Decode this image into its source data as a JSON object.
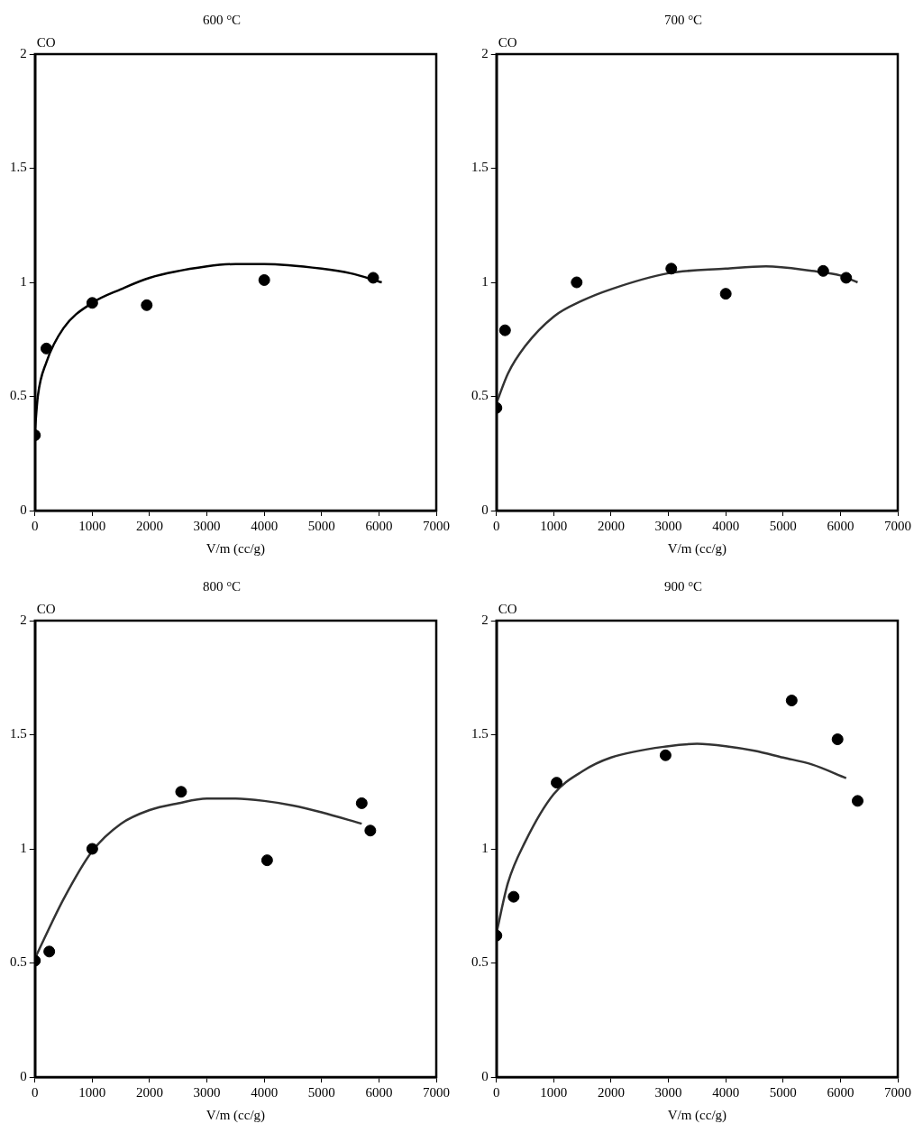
{
  "chart_data": [
    {
      "type": "scatter",
      "title": "600 °C",
      "xlabel": "V/m (cc/g)",
      "ylabel": "CO",
      "xlim": [
        0,
        7000
      ],
      "xticks": [
        0,
        1000,
        2000,
        3000,
        4000,
        5000,
        6000,
        7000
      ],
      "ylim": [
        0,
        2
      ],
      "yticks": [
        0,
        0.5,
        1,
        1.5,
        2
      ],
      "series": [
        {
          "marker": "circle",
          "color": "#000000",
          "x": [
            0,
            200,
            1000,
            1950,
            4000,
            5900
          ],
          "values": [
            0.33,
            0.71,
            0.91,
            0.9,
            1.01,
            1.02
          ]
        },
        {
          "type": "line",
          "marker": "none",
          "color": "#000000",
          "x": [
            0,
            50,
            200,
            500,
            1000,
            1500,
            2000,
            3000,
            3500,
            4000,
            5000,
            5500,
            6050
          ],
          "values": [
            0.35,
            0.5,
            0.65,
            0.8,
            0.91,
            0.97,
            1.02,
            1.07,
            1.08,
            1.08,
            1.06,
            1.04,
            1.0
          ]
        }
      ]
    },
    {
      "type": "scatter",
      "title": "700 °C",
      "xlabel": "V/m (cc/g)",
      "ylabel": "CO",
      "xlim": [
        0,
        7000
      ],
      "xticks": [
        0,
        1000,
        2000,
        3000,
        4000,
        5000,
        6000,
        7000
      ],
      "ylim": [
        0,
        2
      ],
      "yticks": [
        0,
        0.5,
        1,
        1.5,
        2
      ],
      "series": [
        {
          "marker": "circle",
          "color": "#000000",
          "x": [
            0,
            150,
            1400,
            3050,
            4000,
            5700,
            6100
          ],
          "values": [
            0.45,
            0.79,
            1.0,
            1.06,
            0.95,
            1.05,
            1.02
          ]
        },
        {
          "type": "line",
          "marker": "none",
          "color": "#333333",
          "x": [
            0,
            200,
            500,
            1000,
            1500,
            2000,
            3000,
            4000,
            4700,
            5500,
            6000,
            6300
          ],
          "values": [
            0.47,
            0.6,
            0.72,
            0.85,
            0.92,
            0.97,
            1.04,
            1.06,
            1.07,
            1.05,
            1.03,
            1.0
          ]
        }
      ]
    },
    {
      "type": "scatter",
      "title": "800 °C",
      "xlabel": "V/m (cc/g)",
      "ylabel": "CO",
      "xlim": [
        0,
        7000
      ],
      "xticks": [
        0,
        1000,
        2000,
        3000,
        4000,
        5000,
        6000,
        7000
      ],
      "ylim": [
        0,
        2
      ],
      "yticks": [
        0,
        0.5,
        1,
        1.5,
        2
      ],
      "series": [
        {
          "marker": "circle",
          "color": "#000000",
          "x": [
            0,
            250,
            1000,
            2550,
            4050,
            5700,
            5850
          ],
          "values": [
            0.51,
            0.55,
            1.0,
            1.25,
            0.95,
            1.2,
            1.08
          ]
        },
        {
          "type": "line",
          "marker": "none",
          "color": "#333333",
          "x": [
            0,
            500,
            1000,
            1500,
            2000,
            2500,
            3000,
            3500,
            4000,
            4500,
            5000,
            5700
          ],
          "values": [
            0.52,
            0.78,
            0.99,
            1.11,
            1.17,
            1.2,
            1.22,
            1.22,
            1.21,
            1.19,
            1.16,
            1.11
          ]
        }
      ]
    },
    {
      "type": "scatter",
      "title": "900 °C",
      "xlabel": "V/m (cc/g)",
      "ylabel": "CO",
      "xlim": [
        0,
        7000
      ],
      "xticks": [
        0,
        1000,
        2000,
        3000,
        4000,
        5000,
        6000,
        7000
      ],
      "ylim": [
        0,
        2
      ],
      "yticks": [
        0,
        0.5,
        1,
        1.5,
        2
      ],
      "series": [
        {
          "marker": "circle",
          "color": "#000000",
          "x": [
            0,
            300,
            1050,
            2950,
            5150,
            5950,
            6300
          ],
          "values": [
            0.62,
            0.79,
            1.29,
            1.41,
            1.65,
            1.48,
            1.21
          ]
        },
        {
          "type": "line",
          "marker": "none",
          "color": "#333333",
          "x": [
            0,
            200,
            500,
            1000,
            1500,
            2000,
            3000,
            3500,
            4000,
            4500,
            5000,
            5500,
            6100
          ],
          "values": [
            0.63,
            0.85,
            1.03,
            1.24,
            1.34,
            1.4,
            1.45,
            1.46,
            1.45,
            1.43,
            1.4,
            1.37,
            1.31
          ]
        }
      ]
    }
  ]
}
